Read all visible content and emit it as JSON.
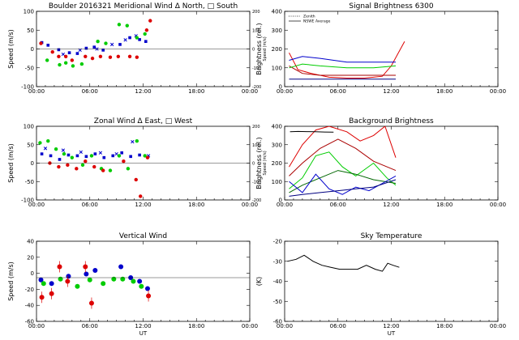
{
  "chart_data": [
    {
      "id": "meridional",
      "type": "scatter",
      "title": "Boulder  2016321    Meridional Wind   Δ North, □ South",
      "ylabel": "Speed (m/s)",
      "ylabel_right": "Speed (m/s)",
      "xlim": [
        0,
        24
      ],
      "ylim": [
        -100,
        100
      ],
      "ylim_right": [
        -200,
        200
      ],
      "xticks": [
        "00:00",
        "06:00",
        "12:00",
        "18:00",
        "00:00"
      ],
      "yticks": [
        "100",
        "50",
        "0",
        "-50",
        "-100"
      ],
      "yticks_right": [
        "200",
        "100",
        "0",
        "-100",
        "-200"
      ],
      "series": [
        {
          "color": "#0000cc",
          "marker": "square",
          "x": [
            0.6,
            1.3,
            2.5,
            3.7,
            4.6,
            5.6,
            6.5,
            7.5,
            9.4,
            10.5,
            11.6,
            12.3
          ],
          "y": [
            17,
            10,
            -2,
            -10,
            -12,
            2,
            5,
            -3,
            12,
            30,
            25,
            20
          ]
        },
        {
          "color": "#0000cc",
          "marker": "x",
          "x": [
            3.0,
            4.9,
            6.8,
            8.5,
            10.0,
            11.2
          ],
          "y": [
            -14,
            -3,
            0,
            12,
            24,
            35
          ]
        },
        {
          "color": "#00cc00",
          "marker": "circle",
          "x": [
            1.2,
            2.6,
            3.3,
            4.1,
            5.1,
            6.9,
            7.8,
            9.3,
            10.2,
            11.3,
            12.2
          ],
          "y": [
            -30,
            -42,
            -37,
            -45,
            -40,
            20,
            15,
            65,
            62,
            30,
            40
          ]
        },
        {
          "color": "#dd0000",
          "marker": "circle",
          "x": [
            0.5,
            1.8,
            2.5,
            3.3,
            4.0,
            5.5,
            6.3,
            7.2,
            8.3,
            9.2,
            10.5,
            11.3,
            12.4,
            12.8
          ],
          "y": [
            15,
            -8,
            -20,
            -20,
            -30,
            -20,
            -25,
            -20,
            -22,
            -20,
            -20,
            -22,
            50,
            75
          ]
        }
      ]
    },
    {
      "id": "signal",
      "type": "line",
      "title": "Signal Brightness        6300",
      "ylabel": "Brightness (rel.)",
      "xlim": [
        0,
        24
      ],
      "ylim": [
        0,
        400
      ],
      "xticks": [
        "00:00",
        "06:00",
        "12:00",
        "18:00",
        "00:00"
      ],
      "yticks": [
        "400",
        "300",
        "200",
        "100",
        "0"
      ],
      "legend": [
        {
          "label": "Zenith",
          "style": "dotted"
        },
        {
          "label": "NSWE Average",
          "style": "solid"
        }
      ],
      "series": [
        {
          "color": "#dd0000",
          "x": [
            0.5,
            1.5,
            3,
            5,
            7,
            9,
            11,
            12,
            13.5
          ],
          "y": [
            180,
            90,
            70,
            50,
            45,
            45,
            55,
            110,
            240
          ]
        },
        {
          "color": "#aa0000",
          "x": [
            0.5,
            2,
            4,
            7,
            10,
            12.5
          ],
          "y": [
            110,
            70,
            60,
            60,
            60,
            60
          ]
        },
        {
          "color": "#00cc00",
          "x": [
            0.5,
            2,
            4,
            7,
            10,
            12.5
          ],
          "y": [
            100,
            120,
            110,
            100,
            100,
            110
          ]
        },
        {
          "color": "#0000cc",
          "x": [
            0.5,
            2,
            4,
            7,
            10,
            12.5
          ],
          "y": [
            140,
            160,
            150,
            130,
            130,
            130
          ]
        },
        {
          "color": "#000080",
          "x": [
            0.5,
            3,
            6,
            9,
            12.5
          ],
          "y": [
            40,
            40,
            40,
            40,
            40
          ]
        }
      ]
    },
    {
      "id": "zonal",
      "type": "scatter",
      "title": "Zonal Wind        Δ East, □ West",
      "ylabel": "Speed (m/s)",
      "ylabel_right": "Speed (m/s)",
      "xlim": [
        0,
        24
      ],
      "ylim": [
        -100,
        100
      ],
      "ylim_right": [
        -200,
        200
      ],
      "xticks": [
        "00:00",
        "06:00",
        "12:00",
        "18:00",
        "00:00"
      ],
      "yticks": [
        "100",
        "50",
        "0",
        "-50",
        "-100"
      ],
      "yticks_right": [
        "200",
        "100",
        "0",
        "-100",
        "-200"
      ],
      "series": [
        {
          "color": "#0000cc",
          "marker": "square",
          "x": [
            0.6,
            1.6,
            2.6,
            3.6,
            4.6,
            5.6,
            6.6,
            7.6,
            8.6,
            9.6,
            10.6,
            11.6
          ],
          "y": [
            25,
            20,
            10,
            22,
            20,
            18,
            25,
            15,
            20,
            28,
            18,
            22
          ]
        },
        {
          "color": "#0000cc",
          "marker": "x",
          "x": [
            1.0,
            3.0,
            5.0,
            7.2,
            9.0,
            10.8,
            12.6
          ],
          "y": [
            40,
            35,
            30,
            28,
            25,
            58,
            20
          ]
        },
        {
          "color": "#00cc00",
          "marker": "circle",
          "x": [
            0.4,
            1.3,
            2.2,
            3.1,
            4.0,
            5.2,
            6.2,
            7.3,
            8.3,
            9.3,
            10.3,
            11.3,
            12.2
          ],
          "y": [
            55,
            60,
            38,
            25,
            15,
            -5,
            20,
            -15,
            -20,
            20,
            -15,
            60,
            20
          ]
        },
        {
          "color": "#dd0000",
          "marker": "circle",
          "x": [
            1.5,
            2.5,
            3.5,
            4.5,
            5.5,
            6.5,
            7.5,
            9.8,
            11.2,
            11.7,
            12.5
          ],
          "y": [
            0,
            -10,
            -5,
            -15,
            5,
            -10,
            -20,
            5,
            -45,
            -90,
            15
          ]
        }
      ]
    },
    {
      "id": "background",
      "type": "line",
      "title": "Background Brightness",
      "ylabel": "Brightness (rel.)",
      "xlim": [
        0,
        24
      ],
      "ylim": [
        0,
        400
      ],
      "xticks": [
        "00:00",
        "06:00",
        "12:00",
        "18:00",
        "00:00"
      ],
      "yticks": [
        "400",
        "300",
        "200",
        "100",
        "0"
      ],
      "series": [
        {
          "color": "#dd0000",
          "x": [
            0.5,
            2,
            3.5,
            5,
            7,
            8.5,
            10,
            11.3,
            12.5
          ],
          "y": [
            180,
            300,
            380,
            400,
            370,
            320,
            350,
            400,
            230
          ]
        },
        {
          "color": "#aa0000",
          "x": [
            0.5,
            2,
            4,
            6,
            8,
            10,
            12.5
          ],
          "y": [
            130,
            200,
            280,
            330,
            280,
            210,
            160
          ]
        },
        {
          "color": "#00cc00",
          "x": [
            0.5,
            2,
            3.5,
            5,
            6.5,
            8,
            10,
            11.5,
            12.5
          ],
          "y": [
            60,
            120,
            240,
            260,
            180,
            130,
            200,
            120,
            80
          ]
        },
        {
          "color": "#006600",
          "x": [
            0.5,
            2,
            4,
            6,
            8,
            10,
            12.5
          ],
          "y": [
            40,
            80,
            120,
            160,
            140,
            110,
            90
          ]
        },
        {
          "color": "#0000cc",
          "x": [
            0.5,
            2,
            3.5,
            5,
            6.5,
            8,
            9.5,
            11,
            12.5
          ],
          "y": [
            100,
            40,
            140,
            60,
            30,
            70,
            50,
            90,
            130
          ]
        },
        {
          "color": "#000080",
          "x": [
            0.5,
            2,
            4,
            6,
            8,
            10,
            12.5
          ],
          "y": [
            20,
            30,
            40,
            50,
            60,
            70,
            110
          ]
        },
        {
          "color": "#000000",
          "x": [
            0.6,
            1.5,
            2.5,
            3.5,
            4.5,
            5.5
          ],
          "y": [
            370,
            372,
            371,
            370,
            369,
            368
          ]
        }
      ]
    },
    {
      "id": "vertical",
      "type": "scatter",
      "title": "Vertical Wind",
      "ylabel": "Speed (m/s)",
      "xlim": [
        0,
        24
      ],
      "ylim": [
        -60,
        50
      ],
      "xticks": [
        "00:00",
        "06:00",
        "12:00",
        "18:00",
        "00:00"
      ],
      "yticks": [
        "40",
        "20",
        "0",
        "-20",
        "-40",
        "-60"
      ],
      "xlabel": "UT",
      "series": [
        {
          "color": "#0000cc",
          "marker": "circle",
          "x": [
            0.5,
            1.7,
            3.6,
            5.6,
            6.6,
            9.5,
            10.6,
            11.6,
            12.5
          ],
          "y": [
            -3,
            -8,
            2,
            5,
            10,
            15,
            0,
            -5,
            -15
          ]
        },
        {
          "color": "#00cc00",
          "marker": "circle",
          "x": [
            0.8,
            2.7,
            4.6,
            6.0,
            7.5,
            8.7,
            9.7,
            10.9,
            11.8
          ],
          "y": [
            -8,
            -2,
            -12,
            -3,
            -8,
            -2,
            -2,
            -5,
            -12
          ]
        },
        {
          "color": "#dd0000",
          "marker": "circle",
          "x": [
            0.6,
            1.7,
            2.6,
            3.5,
            5.5,
            6.2,
            12.6
          ],
          "y": [
            -27,
            -22,
            15,
            -5,
            15,
            -35,
            -25
          ]
        }
      ]
    },
    {
      "id": "sky",
      "type": "line",
      "title": "Sky Temperature",
      "ylabel": "(K)",
      "xlabel": "UT",
      "xlim": [
        0,
        24
      ],
      "ylim": [
        -60,
        -20
      ],
      "xticks": [
        "00:00",
        "06:00",
        "12:00",
        "18:00",
        "00:00"
      ],
      "yticks": [
        "-20",
        "-30",
        "-40",
        "-50",
        "-60"
      ],
      "series": [
        {
          "color": "#000000",
          "x": [
            0.3,
            1.3,
            2.2,
            3.2,
            4.2,
            5.2,
            6.2,
            7.2,
            8.2,
            9.2,
            10.2,
            11.0,
            11.6,
            12.2,
            12.9
          ],
          "y": [
            -30,
            -29,
            -27,
            -30,
            -32,
            -33,
            -34,
            -34,
            -34,
            -32,
            -34,
            -35,
            -31,
            -32,
            -33
          ]
        }
      ]
    }
  ]
}
